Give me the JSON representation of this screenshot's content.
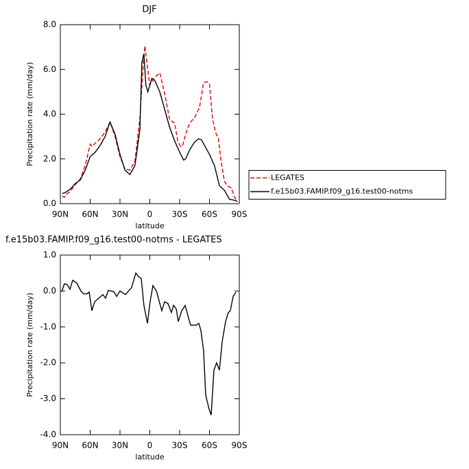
{
  "chart_data": [
    {
      "type": "line",
      "title": "DJF",
      "xlabel": "latitude",
      "ylabel": "Precipitation rate (mm/day)",
      "xlim": [
        90,
        -90
      ],
      "xticks": [
        {
          "value": 90,
          "label": "90N"
        },
        {
          "value": 60,
          "label": "60N"
        },
        {
          "value": 30,
          "label": "30N"
        },
        0,
        {
          "value": -30,
          "label": "30S"
        },
        {
          "value": -60,
          "label": "60S"
        },
        {
          "value": -90,
          "label": "90S"
        }
      ],
      "ylim": [
        0,
        8
      ],
      "yticks": [
        {
          "value": 0,
          "label": "0.0"
        },
        {
          "value": 2,
          "label": "2.0"
        },
        {
          "value": 4,
          "label": "4.0"
        },
        {
          "value": 6,
          "label": "6.0"
        },
        {
          "value": 8,
          "label": "8.0"
        }
      ],
      "legend": "outside-right",
      "series": [
        {
          "name": "LEGATES",
          "color": "#e00000",
          "linestyle": "dashed",
          "x": [
            88,
            86,
            83,
            80,
            75,
            70,
            65,
            60,
            58,
            55,
            50,
            45,
            40,
            35,
            30,
            25,
            20,
            15,
            10,
            7,
            5,
            3,
            0,
            -5,
            -10,
            -15,
            -20,
            -25,
            -28,
            -31,
            -33,
            -36,
            -40,
            -45,
            -50,
            -54,
            -58,
            -60,
            -63,
            -66,
            -69,
            -72,
            -75,
            -78,
            -82,
            -85,
            -88
          ],
          "values": [
            0.35,
            0.28,
            0.45,
            0.55,
            0.85,
            1.1,
            1.7,
            2.65,
            2.55,
            2.7,
            2.9,
            3.2,
            3.65,
            3.0,
            2.1,
            1.55,
            1.5,
            1.9,
            3.8,
            6.0,
            7.05,
            6.3,
            5.3,
            5.65,
            5.85,
            4.9,
            3.75,
            3.6,
            2.8,
            2.55,
            2.6,
            3.1,
            3.6,
            3.85,
            4.3,
            5.4,
            5.45,
            5.35,
            3.8,
            3.2,
            2.9,
            1.8,
            1.0,
            0.8,
            0.7,
            0.3,
            0.1
          ]
        },
        {
          "name": "f.e15b03.FAMIP.f09_g16.test00-notms",
          "color": "#000000",
          "linestyle": "solid",
          "x": [
            88,
            85,
            80,
            75,
            70,
            65,
            60,
            55,
            50,
            45,
            40,
            35,
            30,
            25,
            20,
            15,
            10,
            8,
            6,
            4,
            2,
            0,
            -2,
            -5,
            -10,
            -15,
            -20,
            -25,
            -30,
            -34,
            -36,
            -40,
            -45,
            -49,
            -52,
            -55,
            -60,
            -65,
            -70,
            -75,
            -80,
            -85,
            -88
          ],
          "values": [
            0.45,
            0.5,
            0.65,
            0.9,
            1.05,
            1.5,
            2.1,
            2.3,
            2.6,
            3.0,
            3.65,
            3.1,
            2.2,
            1.5,
            1.3,
            1.7,
            3.3,
            6.3,
            6.7,
            5.3,
            5.0,
            5.3,
            5.6,
            5.5,
            5.0,
            4.2,
            3.4,
            2.8,
            2.3,
            1.95,
            2.0,
            2.4,
            2.75,
            2.9,
            2.85,
            2.6,
            2.2,
            1.7,
            0.8,
            0.6,
            0.2,
            0.15,
            0.1
          ]
        }
      ]
    },
    {
      "type": "line",
      "title": "f.e15b03.FAMIP.f09_g16.test00-notms - LEGATES",
      "xlabel": "latitude",
      "ylabel": "Precipitation rate (mm/day)",
      "xlim": [
        90,
        -90
      ],
      "xticks": [
        {
          "value": 90,
          "label": "90N"
        },
        {
          "value": 60,
          "label": "60N"
        },
        {
          "value": 30,
          "label": "30N"
        },
        0,
        {
          "value": -30,
          "label": "30S"
        },
        {
          "value": -60,
          "label": "60S"
        },
        {
          "value": -90,
          "label": "90S"
        }
      ],
      "ylim": [
        -4,
        1
      ],
      "yticks": [
        {
          "value": -4,
          "label": "-4.0"
        },
        {
          "value": -3,
          "label": "-3.0"
        },
        {
          "value": -2,
          "label": "-2.0"
        },
        {
          "value": -1,
          "label": "-1.0"
        },
        {
          "value": 0,
          "label": "0.0"
        },
        {
          "value": 1,
          "label": "1.0"
        }
      ],
      "series": [
        {
          "color": "#000000",
          "linestyle": "solid",
          "x": [
            88.6,
            85.9,
            83.1,
            80.3,
            77.6,
            73.4,
            69.3,
            66.6,
            63.1,
            61,
            58.3,
            55.5,
            51.4,
            47.2,
            44.5,
            41.7,
            36.2,
            33.4,
            30,
            24.5,
            18.3,
            14.1,
            11.4,
            8.6,
            5.9,
            2.4,
            -0.3,
            -3.1,
            -6.6,
            -12.1,
            -14.8,
            -18.3,
            -21.7,
            -23.8,
            -26.6,
            -28.6,
            -32.1,
            -35.5,
            -41,
            -43.8,
            -46.6,
            -49.3,
            -51.4,
            -54.1,
            -56.2,
            -59.7,
            -61.7,
            -64.5,
            -67.2,
            -70,
            -72.8,
            -76.2,
            -79,
            -81,
            -83.8,
            -86.6
          ],
          "values": [
            -0.02,
            0.2,
            0.18,
            0.05,
            0.3,
            0.22,
            0,
            -0.08,
            -0.08,
            -0.03,
            -0.55,
            -0.3,
            -0.2,
            -0.1,
            -0.2,
            0.02,
            -0.02,
            -0.15,
            0,
            -0.1,
            0.1,
            0.5,
            0.4,
            0.35,
            -0.4,
            -0.9,
            -0.3,
            0.15,
            0,
            -0.55,
            -0.3,
            -0.35,
            -0.6,
            -0.4,
            -0.5,
            -0.85,
            -0.55,
            -0.4,
            -0.95,
            -0.95,
            -0.95,
            -0.9,
            -1.1,
            -1.65,
            -2.9,
            -3.3,
            -3.45,
            -2.2,
            -2.0,
            -2.2,
            -1.4,
            -0.85,
            -0.6,
            -0.55,
            -0.15,
            -0.03
          ]
        }
      ]
    }
  ]
}
